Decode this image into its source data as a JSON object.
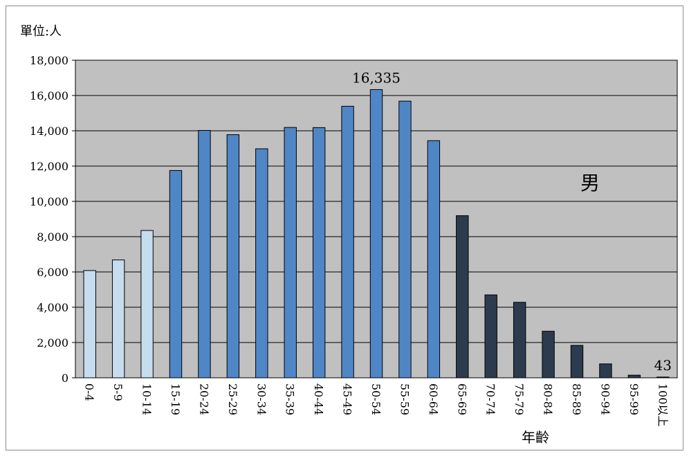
{
  "chart_data": {
    "type": "bar",
    "unit_label": "單位:人",
    "series_label": "男",
    "xlabel": "年齡",
    "ylabel": "",
    "ylim": [
      0,
      18000
    ],
    "y_ticks": [
      0,
      2000,
      4000,
      6000,
      8000,
      10000,
      12000,
      14000,
      16000,
      18000
    ],
    "y_tick_labels": [
      "0",
      "2,000",
      "4,000",
      "6,000",
      "8,000",
      "10,000",
      "12,000",
      "14,000",
      "16,000",
      "18,000"
    ],
    "grid": true,
    "categories": [
      "0-4",
      "5-9",
      "10-14",
      "15-19",
      "20-24",
      "25-29",
      "30-34",
      "35-39",
      "40-44",
      "45-49",
      "50-54",
      "55-59",
      "60-64",
      "65-69",
      "70-74",
      "75-79",
      "80-84",
      "85-89",
      "90-94",
      "95-99",
      "100以上"
    ],
    "values": [
      6080,
      6680,
      8350,
      11750,
      14020,
      13780,
      12980,
      14190,
      14180,
      15390,
      16335,
      15680,
      13440,
      9190,
      4700,
      4280,
      2640,
      1840,
      790,
      150,
      43
    ],
    "bar_colors": [
      "#c6dcef",
      "#c6dcef",
      "#c6dcef",
      "#4f86c6",
      "#4f86c6",
      "#4f86c6",
      "#4f86c6",
      "#4f86c6",
      "#4f86c6",
      "#4f86c6",
      "#4f86c6",
      "#4f86c6",
      "#4f86c6",
      "#2d3b4e",
      "#2d3b4e",
      "#2d3b4e",
      "#2d3b4e",
      "#2d3b4e",
      "#2d3b4e",
      "#2d3b4e",
      "#2d3b4e"
    ],
    "data_labels": [
      {
        "index": 10,
        "text": "16,335"
      },
      {
        "index": 20,
        "text": "43"
      }
    ],
    "plot_background": "#c0c0c0",
    "grid_color": "#000000"
  }
}
